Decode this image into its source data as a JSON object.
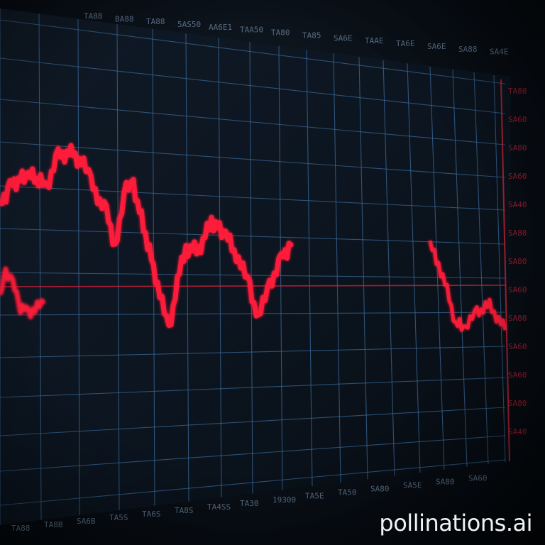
{
  "header": {
    "labels": [
      "TA88",
      "BA88",
      "TA88",
      "5AS50",
      "AA6E1",
      "TAA50",
      "TA80",
      "TA85",
      "SA6E",
      "TAAE",
      "TA6E",
      "SA6E",
      "SA88",
      "SA4E"
    ]
  },
  "footer": {
    "labels": [
      "TA88",
      "TA8B",
      "SA6B",
      "TA5S",
      "TA6S",
      "TA8S",
      "TA4SS",
      "TA30",
      "19300",
      "TA5E",
      "TA50",
      "SA80",
      "SA5E",
      "SA80",
      "SA60"
    ]
  },
  "right_axis": {
    "labels": [
      "TA80",
      "SA60",
      "SA80",
      "SA60",
      "SA40",
      "SA80",
      "SA80",
      "SA60",
      "SA80",
      "SA60",
      "SA60",
      "SA80",
      "SA40"
    ]
  },
  "watermark": "pollinations.ai",
  "colors": {
    "grid": "#3b6a9a",
    "line": "#ff1f3a",
    "baseline": "#e0203a"
  }
}
